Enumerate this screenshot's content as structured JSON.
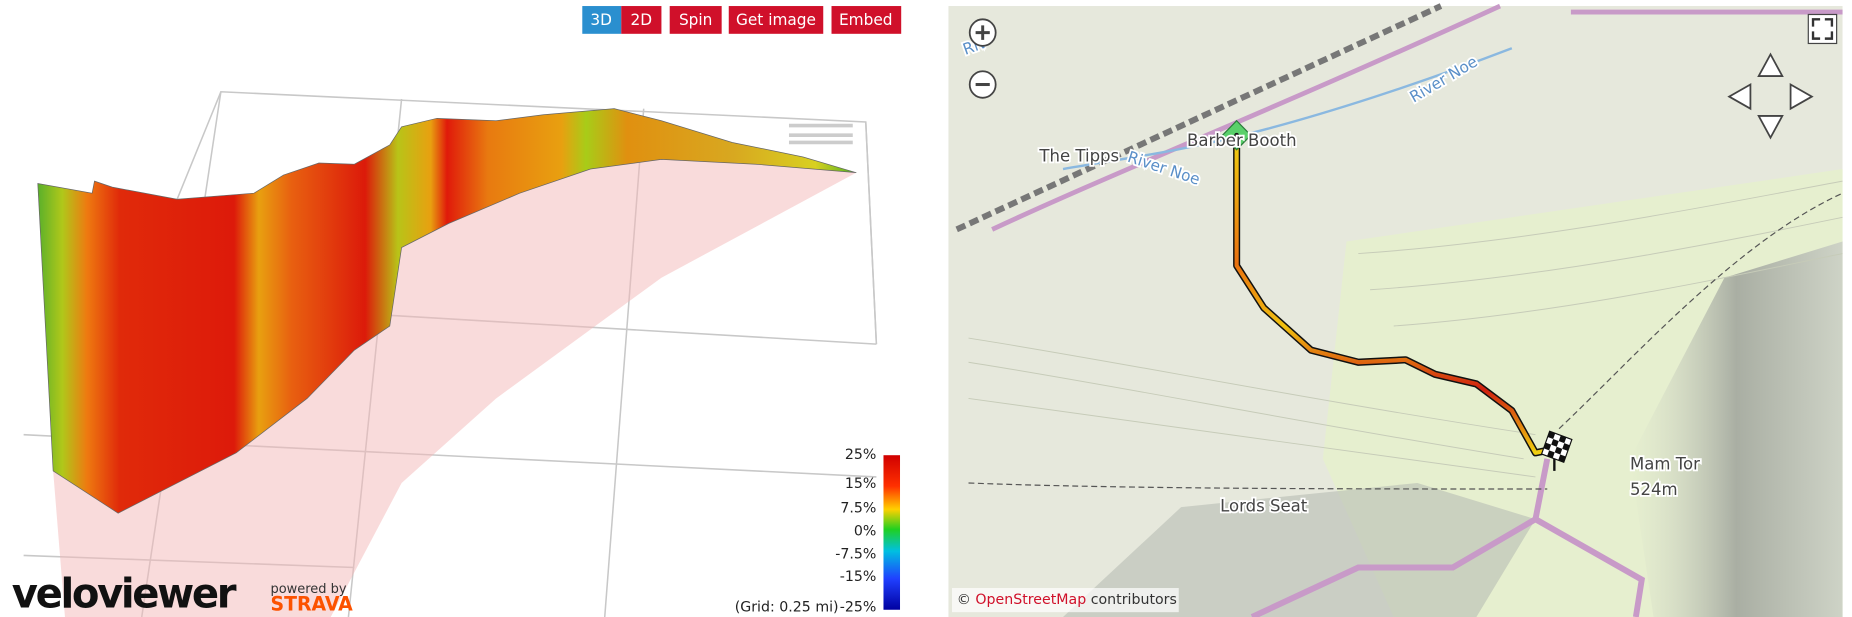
{
  "toolbar": {
    "buttons": [
      "3D",
      "2D",
      "Spin",
      "Get image",
      "Embed"
    ]
  },
  "profile": {
    "scale_labels": [
      "25%",
      "15%",
      "7.5%",
      "0%",
      "-7.5%",
      "-15%",
      "-25%"
    ],
    "grid_note": "(Grid: 0.25 mi)",
    "logo": "veloviewer",
    "powered_by": "powered by",
    "strava": "STRAVA"
  },
  "map": {
    "labels": [
      "Riv",
      "River Noe",
      "The Tipps",
      "Barber Booth",
      "Lords Seat",
      "Mam Tor",
      "524m"
    ],
    "attribution": {
      "prefix": "©",
      "link": "OpenStreetMap",
      "suffix": "contributors"
    }
  }
}
